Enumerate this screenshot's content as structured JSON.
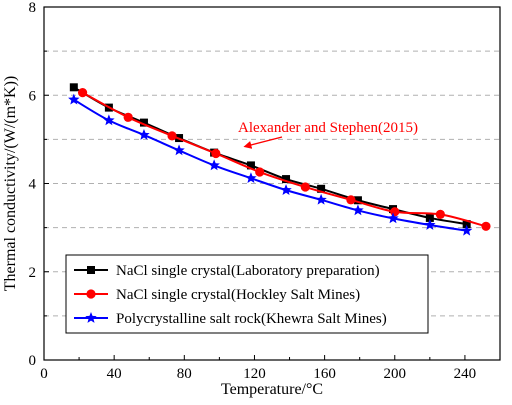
{
  "chart_data": {
    "type": "line",
    "title": "",
    "xlabel": "Temperature/°C",
    "ylabel": "Thermal conductivity/(W/(m*K))",
    "xlim": [
      0,
      260
    ],
    "ylim": [
      0,
      8
    ],
    "xticks": [
      0,
      40,
      80,
      120,
      160,
      200,
      240
    ],
    "yticks": [
      0,
      2,
      4,
      6,
      8
    ],
    "grid": "horizontal dashed",
    "legend_position": "bottom-left",
    "series": [
      {
        "name": "NaCl single crystal(Laboratory preparation)",
        "color": "#000000",
        "marker": "square",
        "x": [
          17,
          37,
          57,
          77,
          97,
          118,
          138,
          158,
          179,
          199,
          220,
          241
        ],
        "y": [
          6.18,
          5.72,
          5.38,
          5.03,
          4.7,
          4.41,
          4.1,
          3.88,
          3.62,
          3.42,
          3.22,
          3.08
        ]
      },
      {
        "name": "NaCl single crystal(Hockley Salt Mines)",
        "color": "#ff0000",
        "marker": "circle",
        "x": [
          22,
          48,
          73,
          98,
          123,
          149,
          175,
          200,
          226,
          252
        ],
        "y": [
          6.06,
          5.5,
          5.08,
          4.68,
          4.26,
          3.92,
          3.63,
          3.36,
          3.3,
          3.03
        ]
      },
      {
        "name": "Polycrystalline salt rock(Khewra Salt Mines)",
        "color": "#0000ff",
        "marker": "star",
        "x": [
          17,
          37,
          57,
          77,
          97,
          118,
          138,
          158,
          179,
          199,
          220,
          241
        ],
        "y": [
          5.9,
          5.43,
          5.1,
          4.75,
          4.41,
          4.12,
          3.85,
          3.63,
          3.39,
          3.21,
          3.06,
          2.93
        ]
      }
    ],
    "annotation": {
      "text": "Alexander and Stephen(2015)",
      "color": "#ff0000",
      "arrow_to": {
        "x": 100,
        "y": 4.75
      }
    }
  }
}
